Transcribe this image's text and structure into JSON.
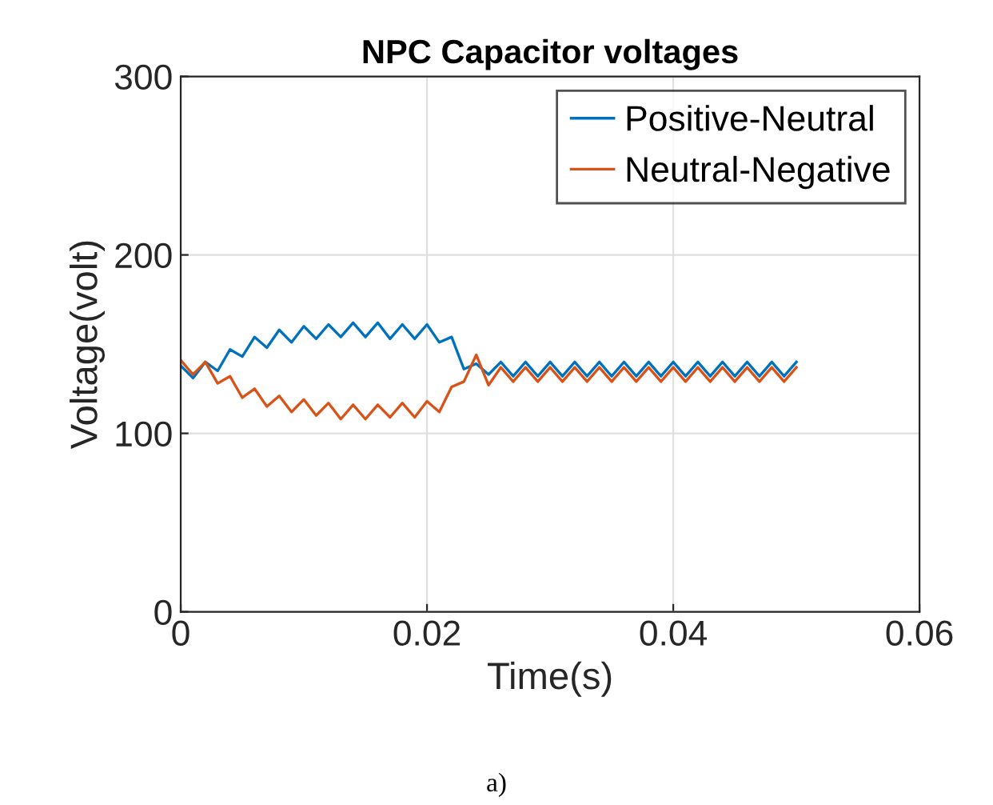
{
  "chart_data": {
    "type": "line",
    "title": "NPC Capacitor voltages",
    "xlabel": "Time(s)",
    "ylabel": "Voltage(volt)",
    "annotations": [
      "a)"
    ],
    "x": [
      0,
      0.001,
      0.002,
      0.003,
      0.004,
      0.005,
      0.006,
      0.007,
      0.008,
      0.009,
      0.01,
      0.011,
      0.012,
      0.013,
      0.014,
      0.015,
      0.016,
      0.017,
      0.018,
      0.019,
      0.02,
      0.021,
      0.022,
      0.023,
      0.024,
      0.025,
      0.026,
      0.027,
      0.028,
      0.029,
      0.03,
      0.031,
      0.032,
      0.033,
      0.034,
      0.035,
      0.036,
      0.037,
      0.038,
      0.039,
      0.04,
      0.041,
      0.042,
      0.043,
      0.044,
      0.045,
      0.046,
      0.047,
      0.048,
      0.049,
      0.05
    ],
    "series": [
      {
        "name": "Positive-Neutral",
        "color": "#0072bd",
        "values": [
          138,
          131,
          140,
          135,
          147,
          143,
          154,
          148,
          158,
          151,
          160,
          153,
          161,
          154,
          162,
          154,
          162,
          153,
          161,
          153,
          161,
          151,
          154,
          136,
          139,
          133,
          140,
          132,
          140,
          132,
          140,
          132,
          140,
          132,
          140,
          132,
          140,
          132,
          140,
          132,
          140,
          132,
          140,
          132,
          140,
          132,
          140,
          132,
          140,
          132,
          140
        ]
      },
      {
        "name": "Neutral-Negative",
        "color": "#d95319",
        "values": [
          141,
          133,
          140,
          128,
          132,
          120,
          125,
          115,
          121,
          112,
          119,
          110,
          117,
          108,
          116,
          108,
          116,
          109,
          117,
          109,
          118,
          112,
          126,
          129,
          144,
          127,
          137,
          129,
          137,
          129,
          137,
          129,
          137,
          129,
          137,
          129,
          137,
          129,
          137,
          129,
          137,
          129,
          137,
          129,
          137,
          129,
          137,
          129,
          137,
          129,
          137
        ]
      }
    ],
    "xlim": [
      0,
      0.06
    ],
    "xticks": [
      0,
      0.02,
      0.04,
      0.06
    ],
    "ylim": [
      0,
      300
    ],
    "yticks": [
      0,
      100,
      200,
      300
    ],
    "grid": true,
    "legend": "top right",
    "line_style": "solid",
    "marker": "none"
  }
}
